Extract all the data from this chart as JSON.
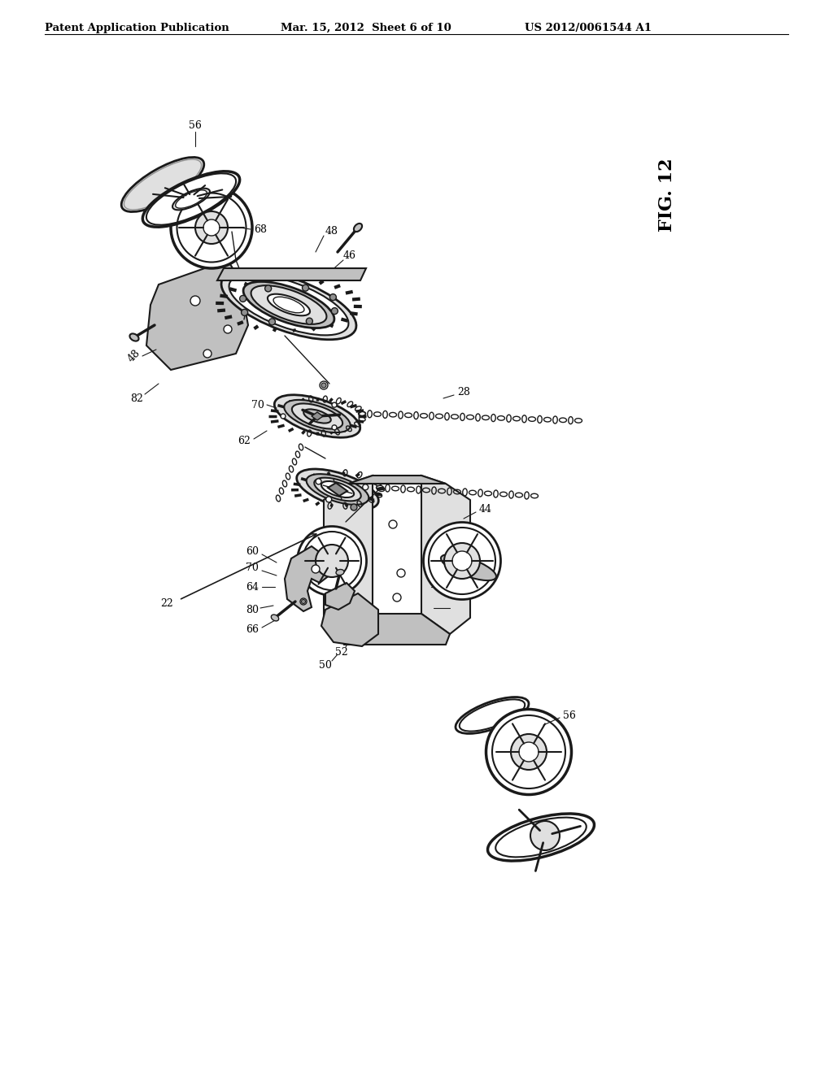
{
  "background_color": "#ffffff",
  "header_left": "Patent Application Publication",
  "header_center": "Mar. 15, 2012  Sheet 6 of 10",
  "header_right": "US 2012/0061544 A1",
  "fig_label": "FIG. 12",
  "header_fontsize": 9.5,
  "fig_label_fontsize": 16,
  "label_fontsize": 9,
  "line_color": "#1a1a1a",
  "gray_light": "#e0e0e0",
  "gray_mid": "#c0c0c0",
  "gray_dark": "#909090"
}
